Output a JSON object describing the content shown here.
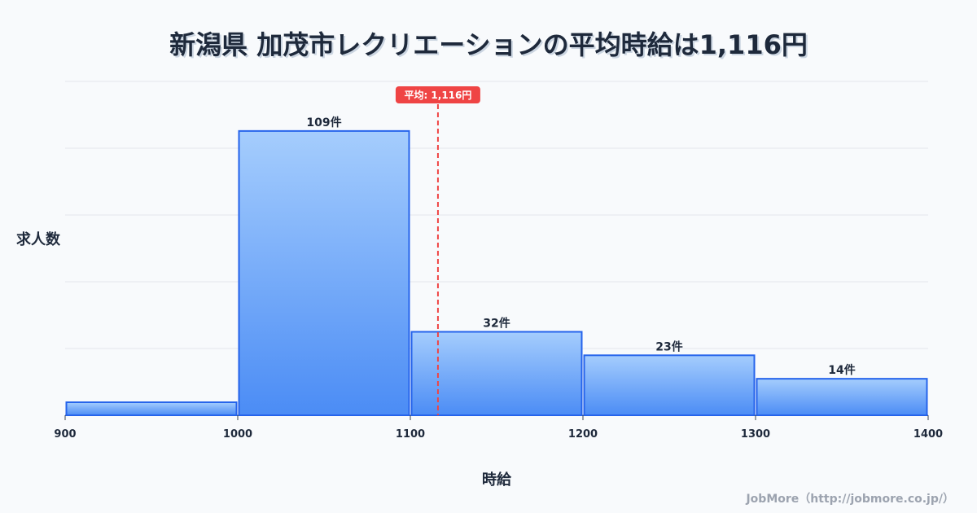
{
  "chart_data": {
    "type": "bar",
    "title": "新潟県 加茂市レクリエーションの平均時給は1,116円",
    "xlabel": "時給",
    "ylabel": "求人数",
    "bins": [
      [
        900,
        1000
      ],
      [
        1000,
        1100
      ],
      [
        1100,
        1200
      ],
      [
        1200,
        1300
      ],
      [
        1300,
        1400
      ]
    ],
    "values": [
      5,
      109,
      32,
      23,
      14
    ],
    "labels": [
      "",
      "109件",
      "32件",
      "23件",
      "14件"
    ],
    "xticks": [
      "900",
      "1000",
      "1100",
      "1200",
      "1300",
      "1400"
    ],
    "xlim": [
      900,
      1400
    ],
    "ylim": [
      0,
      128
    ],
    "mean": 1116,
    "mean_label": "平均: 1,116円",
    "bar_color": "#3b82f6",
    "bar_stroke": "#2563eb",
    "mean_color": "#ef4444",
    "grid": true
  },
  "credit": "JobMore（http://jobmore.co.jp/）"
}
